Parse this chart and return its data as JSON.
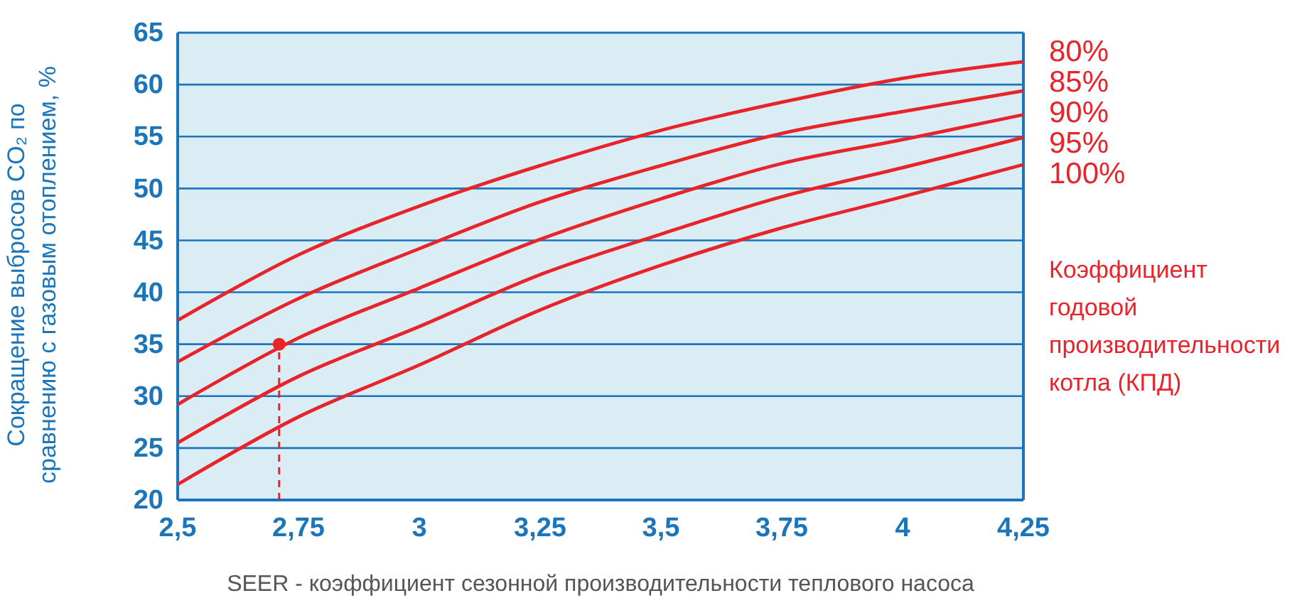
{
  "chart_data": {
    "type": "line",
    "xlabel": "SEER - коэффициент сезонной производительности теплового насоса",
    "ylabel": "Сокращение выбросов CO₂ по сравнению с газовым отоплением, %",
    "legend_title": "Коэффициент годовой производительности котла (КПД)",
    "legend": "right",
    "grid": "y",
    "marker": "none",
    "line_style": "solid",
    "xlim": [
      2.5,
      4.25
    ],
    "xticks": [
      {
        "value": 2.5,
        "label": "2,5"
      },
      {
        "value": 2.75,
        "label": "2,75"
      },
      3,
      {
        "value": 3.25,
        "label": "3,25"
      },
      {
        "value": 3.5,
        "label": "3,5"
      },
      {
        "value": 3.75,
        "label": "3,75"
      },
      4,
      {
        "value": 4.25,
        "label": "4,25"
      }
    ],
    "ylim": [
      20,
      65
    ],
    "yticks": [
      20,
      25,
      30,
      35,
      40,
      45,
      50,
      55,
      60,
      65
    ],
    "x": [
      2.5,
      2.75,
      3,
      3.25,
      3.5,
      3.75,
      4,
      4.25
    ],
    "series": [
      {
        "name": "80%",
        "color": "#e8232a",
        "values": [
          37.3,
          43.6,
          48.3,
          52.2,
          55.6,
          58.3,
          60.6,
          62.2
        ]
      },
      {
        "name": "85%",
        "color": "#e8232a",
        "values": [
          33.3,
          39.4,
          44.2,
          48.7,
          52.2,
          55.3,
          57.4,
          59.4
        ]
      },
      {
        "name": "90%",
        "color": "#e8232a",
        "values": [
          29.2,
          35.6,
          40.4,
          45.1,
          49.0,
          52.4,
          54.7,
          57.1
        ]
      },
      {
        "name": "95%",
        "color": "#e8232a",
        "values": [
          25.5,
          31.9,
          36.7,
          41.7,
          45.6,
          49.2,
          52.0,
          54.9
        ]
      },
      {
        "name": "100%",
        "color": "#e8232a",
        "values": [
          21.5,
          28.0,
          33.0,
          38.3,
          42.6,
          46.2,
          49.2,
          52.3
        ]
      },
      {
        "type": "scatter",
        "marker": "circle",
        "color": "#e8232a",
        "x": [
          2.71
        ],
        "values": [
          35
        ]
      }
    ],
    "ref_lines": [
      {
        "axis": "x",
        "value": 2.71,
        "color": "#e8232a",
        "line_style": "dashed"
      }
    ]
  }
}
